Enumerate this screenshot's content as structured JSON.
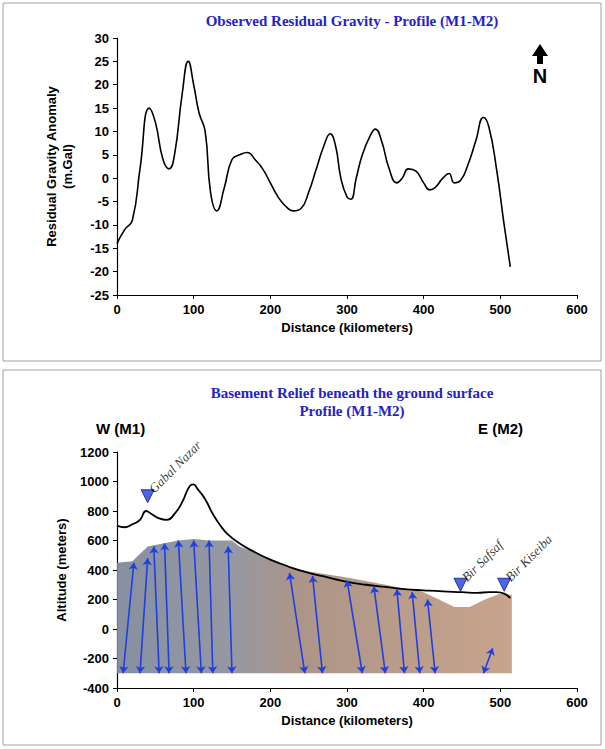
{
  "chart_data": [
    {
      "type": "line",
      "title": "Observed Residual Gravity - Profile (M1-M2)",
      "x_label": "Distance (kilometers)",
      "y_label": "Residual Gravity Anomaly\n(m.Gal)",
      "north_label": "N",
      "x": [
        0,
        10,
        20,
        30,
        42,
        50,
        60,
        68,
        75,
        85,
        93,
        100,
        107,
        115,
        122,
        130,
        140,
        150,
        160,
        170,
        180,
        190,
        200,
        210,
        220,
        230,
        240,
        250,
        260,
        270,
        278,
        285,
        292,
        300,
        305,
        312,
        320,
        330,
        337,
        345,
        355,
        365,
        372,
        380,
        390,
        400,
        408,
        415,
        425,
        433,
        440,
        448,
        458,
        468,
        478,
        485,
        495,
        505,
        513
      ],
      "values": [
        -14,
        -11,
        -9,
        2,
        15,
        12,
        4,
        2,
        5,
        18,
        25,
        20,
        14,
        10,
        -3,
        -7,
        -2,
        4,
        5,
        5.5,
        4,
        2,
        -1,
        -4,
        -6,
        -7,
        -6.5,
        -3,
        2,
        7,
        9.5,
        7,
        0,
        -4,
        -4.5,
        0,
        5,
        9,
        10.5,
        8,
        2,
        -1,
        0,
        2,
        1.5,
        -1,
        -2.5,
        -2,
        0,
        1,
        -1,
        -0.5,
        3,
        8,
        13,
        11,
        2,
        -10,
        -19
      ],
      "color": "#000000",
      "xlim": [
        0,
        600
      ],
      "xticks": [
        0,
        100,
        200,
        300,
        400,
        500,
        600
      ],
      "ylim": [
        -25,
        30
      ],
      "yticks": [
        -25,
        -20,
        -15,
        -10,
        -5,
        0,
        5,
        10,
        15,
        20,
        25,
        30
      ],
      "grid": false
    },
    {
      "type": "line",
      "title": "Basement Relief beneath the ground surface",
      "subtitle": "Profile (M1-M2)",
      "x_label": "Distance (kilometers)",
      "y_label": "Altitude (meters)",
      "west_label": "W (M1)",
      "east_label": "E (M2)",
      "series": [
        {
          "type": "line",
          "color": "#000000",
          "x": [
            0,
            10,
            20,
            30,
            38,
            45,
            55,
            65,
            75,
            85,
            95,
            100,
            105,
            115,
            125,
            135,
            145,
            160,
            180,
            200,
            225,
            250,
            275,
            300,
            325,
            350,
            375,
            400,
            425,
            450,
            470,
            485,
            495,
            505,
            513
          ],
          "values": [
            700,
            690,
            710,
            740,
            800,
            780,
            750,
            740,
            780,
            860,
            970,
            980,
            950,
            880,
            780,
            700,
            640,
            580,
            520,
            470,
            420,
            380,
            350,
            320,
            300,
            285,
            270,
            262,
            255,
            250,
            245,
            250,
            250,
            240,
            210
          ]
        },
        {
          "type": "area",
          "color": "#8d8f9a",
          "x": [
            0,
            20,
            40,
            60,
            80,
            100,
            120,
            150,
            160,
            180,
            200,
            220,
            250,
            300,
            350,
            400,
            420,
            440,
            460,
            480,
            500,
            515
          ],
          "values": [
            450,
            460,
            560,
            580,
            600,
            610,
            600,
            600,
            560,
            520,
            470,
            420,
            390,
            350,
            300,
            250,
            200,
            150,
            150,
            200,
            240,
            230
          ],
          "base": -300
        }
      ],
      "faults": {
        "color": "#1f3fe0",
        "segments": [
          [
            8,
            -300,
            22,
            450
          ],
          [
            30,
            -300,
            40,
            480
          ],
          [
            55,
            -300,
            48,
            560
          ],
          [
            68,
            -300,
            62,
            580
          ],
          [
            90,
            -300,
            80,
            600
          ],
          [
            110,
            -300,
            100,
            600
          ],
          [
            125,
            -300,
            120,
            600
          ],
          [
            150,
            -300,
            145,
            560
          ],
          [
            245,
            -300,
            225,
            380
          ],
          [
            268,
            -300,
            255,
            360
          ],
          [
            320,
            -300,
            300,
            330
          ],
          [
            350,
            -300,
            335,
            290
          ],
          [
            375,
            -300,
            365,
            270
          ],
          [
            395,
            -300,
            385,
            250
          ],
          [
            415,
            -300,
            405,
            200
          ],
          [
            478,
            -300,
            490,
            -130
          ]
        ]
      },
      "markers": {
        "color": "#1f3fe0",
        "points": [
          {
            "text": "Gabal Nazar",
            "x": 40,
            "y": 900
          },
          {
            "text": "Bir Safsaf",
            "x": 448,
            "y": 300
          },
          {
            "text": "Bir Kiseiba",
            "x": 505,
            "y": 300
          }
        ]
      },
      "xlim": [
        0,
        600
      ],
      "xticks": [
        0,
        100,
        200,
        300,
        400,
        500,
        600
      ],
      "ylim": [
        -400,
        1200
      ],
      "yticks": [
        -400,
        -200,
        0,
        200,
        400,
        600,
        800,
        1000,
        1200
      ],
      "grid": false
    }
  ]
}
